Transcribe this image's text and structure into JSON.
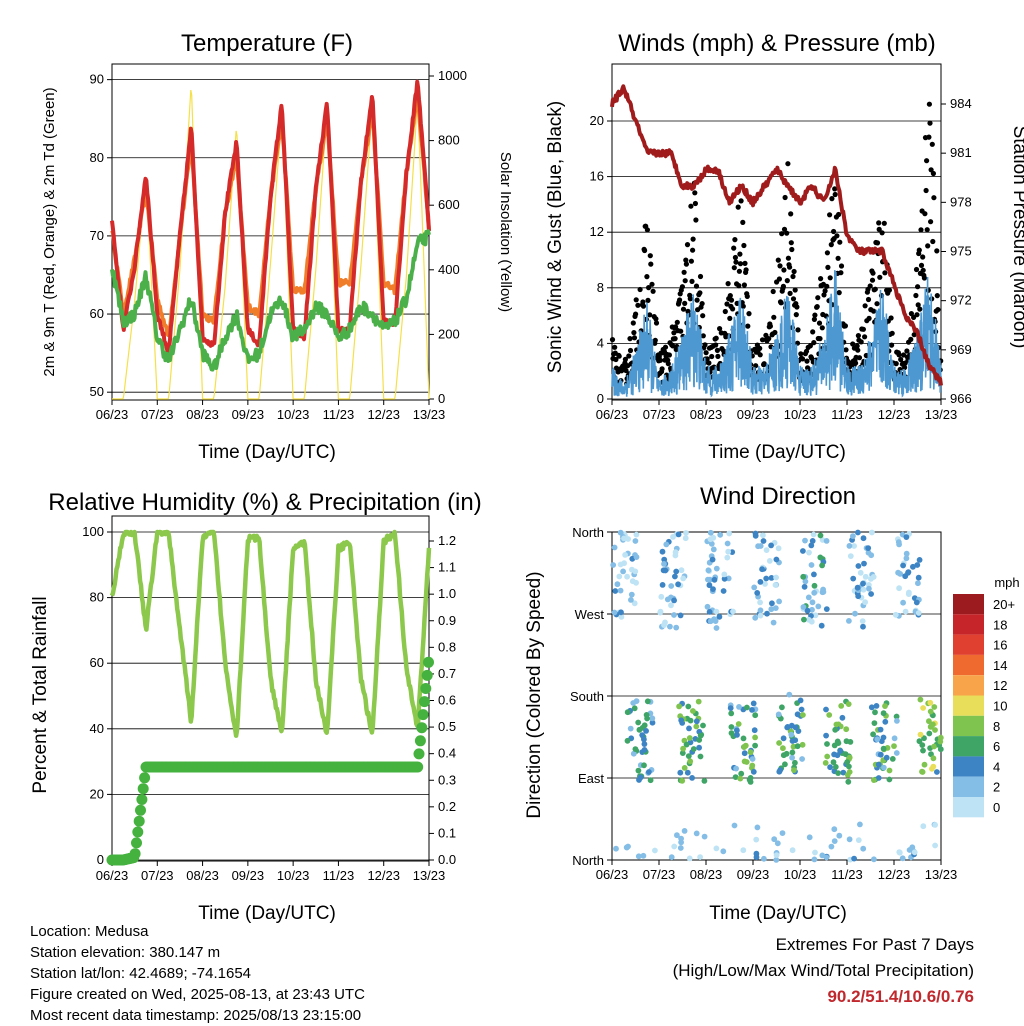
{
  "info": {
    "location": "Location: Medusa",
    "elevation": "Station elevation: 380.147 m",
    "latlon": "Station lat/lon: 42.4689; -74.1654",
    "created": "Figure created on Wed, 2025-08-13, at 23:43 UTC",
    "recent": "Most recent data timestamp: 2025/08/13 23:15:00"
  },
  "extremes": {
    "title": "Extremes For Past 7 Days",
    "subtitle": "(High/Low/Max Wind/Total Precipitation)",
    "values": "90.2/51.4/10.6/0.76"
  },
  "x_ticks": [
    "06/23",
    "07/23",
    "08/23",
    "09/23",
    "10/23",
    "11/23",
    "12/23",
    "13/23"
  ],
  "colors": {
    "temp2m": "#d42a2a",
    "temp9m": "#f07d2a",
    "dewpoint": "#4cb04a",
    "solar": "#f5e04a",
    "wind": "#4d98d0",
    "gust": "#000000",
    "pressure": "#a01c1c",
    "rh": "#8cc84b",
    "precip": "#45b23f"
  },
  "chart_data": [
    {
      "type": "line",
      "title": "Temperature (F)",
      "xlabel": "Time (Day/UTC)",
      "ylabel": "2m & 9m T (Red, Orange) & 2m Td (Green)",
      "y2label": "Solar Insolation (Yellow)",
      "ylim": [
        49,
        92
      ],
      "y2lim": [
        0,
        1000
      ],
      "yticks": [
        50,
        60,
        70,
        80,
        90
      ],
      "y2ticks": [
        0,
        200,
        400,
        600,
        800,
        1000
      ],
      "x": [
        0,
        0.25,
        0.5,
        0.75,
        1,
        1.25,
        1.5,
        1.75,
        2,
        2.25,
        2.5,
        2.75,
        3,
        3.25,
        3.5,
        3.75,
        4,
        4.25,
        4.5,
        4.75,
        5,
        5.25,
        5.5,
        5.75,
        6,
        6.25,
        6.5,
        6.75,
        7
      ],
      "series": [
        {
          "name": "2m T",
          "values": [
            72,
            58,
            66,
            78,
            60,
            55,
            70,
            84,
            57,
            56,
            73,
            82,
            58,
            56,
            75,
            87,
            58,
            57,
            76,
            87,
            58,
            58,
            77,
            88,
            59,
            59,
            78,
            90,
            71
          ]
        },
        {
          "name": "9m T",
          "values": [
            71,
            60,
            67,
            76,
            62,
            57,
            70,
            82,
            60,
            59,
            73,
            80,
            61,
            60,
            75,
            85,
            63,
            63,
            76,
            85,
            64,
            64,
            77,
            86,
            64,
            63,
            78,
            88,
            71
          ]
        },
        {
          "name": "2m Td",
          "values": [
            66,
            59,
            60,
            65,
            57,
            54,
            58,
            62,
            55,
            53,
            57,
            60,
            54,
            55,
            60,
            62,
            57,
            58,
            61,
            60,
            57,
            58,
            61,
            60,
            58,
            59,
            62,
            69,
            70
          ]
        },
        {
          "name": "Solar",
          "values": [
            0,
            0,
            300,
            700,
            0,
            0,
            400,
            980,
            0,
            0,
            350,
            850,
            0,
            0,
            420,
            880,
            0,
            0,
            400,
            900,
            0,
            0,
            420,
            910,
            0,
            0,
            380,
            930,
            0
          ]
        }
      ]
    },
    {
      "type": "line",
      "title": "Winds (mph) & Pressure (mb)",
      "xlabel": "Time (Day/UTC)",
      "ylabel": "Sonic Wind & Gust (Blue, Black)",
      "y2label": "Station Pressure (Maroon)",
      "ylim": [
        0,
        24
      ],
      "y2lim": [
        966,
        986
      ],
      "yticks": [
        0,
        4,
        8,
        12,
        16,
        20
      ],
      "y2ticks": [
        966,
        969,
        972,
        975,
        978,
        981,
        984
      ],
      "x": [
        0,
        0.25,
        0.5,
        0.75,
        1,
        1.25,
        1.5,
        1.75,
        2,
        2.25,
        2.5,
        2.75,
        3,
        3.25,
        3.5,
        3.75,
        4,
        4.25,
        4.5,
        4.75,
        5,
        5.25,
        5.5,
        5.75,
        6,
        6.25,
        6.5,
        6.75,
        7
      ],
      "series": [
        {
          "name": "Wind",
          "values": [
            2,
            1,
            3,
            6,
            1,
            2,
            4,
            7,
            2,
            2,
            4,
            7,
            2,
            2,
            4,
            7,
            2,
            2,
            4,
            8,
            2,
            2,
            4,
            7,
            2,
            2,
            4,
            8,
            2
          ]
        },
        {
          "name": "Gust",
          "values": [
            4,
            2,
            6,
            12,
            3,
            4,
            8,
            14,
            3,
            4,
            8,
            14,
            3,
            4,
            8,
            16,
            3,
            4,
            9,
            15,
            3,
            4,
            8,
            13,
            3,
            3,
            9,
            21,
            3
          ]
        },
        {
          "name": "Pressure",
          "values": [
            984,
            985,
            983,
            981,
            981,
            981,
            979,
            979,
            980,
            980,
            978,
            979,
            978,
            979,
            980,
            979,
            978,
            979,
            978,
            980,
            976,
            975,
            975,
            975,
            973,
            971,
            970,
            968,
            967
          ]
        }
      ]
    },
    {
      "type": "line",
      "title": "Relative Humidity (%) & Precipitation (in)",
      "xlabel": "Time (Day/UTC)",
      "ylabel": "Percent & Total Rainfall",
      "ylim": [
        0,
        100
      ],
      "y2lim": [
        0,
        1.25
      ],
      "yticks": [
        0,
        20,
        40,
        60,
        80,
        100
      ],
      "y2ticks": [
        0.0,
        0.1,
        0.2,
        0.3,
        0.4,
        0.5,
        0.6,
        0.7,
        0.8,
        0.9,
        1.0,
        1.1,
        1.2
      ],
      "x": [
        0,
        0.25,
        0.5,
        0.75,
        1,
        1.25,
        1.5,
        1.75,
        2,
        2.25,
        2.5,
        2.75,
        3,
        3.25,
        3.5,
        3.75,
        4,
        4.25,
        4.5,
        4.75,
        5,
        5.25,
        5.5,
        5.75,
        6,
        6.25,
        6.5,
        6.75,
        7
      ],
      "series": [
        {
          "name": "RH",
          "values": [
            80,
            100,
            100,
            70,
            100,
            100,
            70,
            42,
            98,
            100,
            60,
            37,
            98,
            98,
            55,
            38,
            95,
            97,
            55,
            38,
            95,
            97,
            55,
            38,
            97,
            100,
            58,
            40,
            95
          ]
        },
        {
          "name": "Precip",
          "values": [
            0,
            0,
            0.01,
            0.35,
            0.35,
            0.35,
            0.35,
            0.35,
            0.35,
            0.35,
            0.35,
            0.35,
            0.35,
            0.35,
            0.35,
            0.35,
            0.35,
            0.35,
            0.35,
            0.35,
            0.35,
            0.35,
            0.35,
            0.35,
            0.35,
            0.35,
            0.35,
            0.35,
            0.76
          ]
        }
      ]
    },
    {
      "type": "scatter",
      "title": "Wind Direction",
      "xlabel": "Time (Day/UTC)",
      "ylabel": "Direction (Colored By Speed)",
      "ycategories": [
        "North",
        "East",
        "South",
        "West",
        "North"
      ],
      "colorbar_title": "mph",
      "colorbar_labels": [
        "20+",
        "18",
        "16",
        "14",
        "12",
        "10",
        "8",
        "6",
        "4",
        "2",
        "0"
      ],
      "colorbar_colors": [
        "#9b1b1e",
        "#c6252a",
        "#e04030",
        "#ef6a2f",
        "#f7a44a",
        "#e9de59",
        "#7fc44e",
        "#3ea566",
        "#3d84c4",
        "#84bde6",
        "#bde3f5"
      ],
      "clusters": [
        {
          "x": 0.3,
          "dir": 320,
          "speed": 1
        },
        {
          "x": 0.6,
          "dir": 130,
          "speed": 4
        },
        {
          "x": 1.3,
          "dir": 310,
          "speed": 2
        },
        {
          "x": 1.7,
          "dir": 130,
          "speed": 6
        },
        {
          "x": 2.3,
          "dir": 305,
          "speed": 2
        },
        {
          "x": 2.8,
          "dir": 130,
          "speed": 5
        },
        {
          "x": 3.3,
          "dir": 315,
          "speed": 2
        },
        {
          "x": 3.8,
          "dir": 140,
          "speed": 5
        },
        {
          "x": 4.3,
          "dir": 310,
          "speed": 3
        },
        {
          "x": 4.8,
          "dir": 130,
          "speed": 6
        },
        {
          "x": 5.3,
          "dir": 310,
          "speed": 2
        },
        {
          "x": 5.8,
          "dir": 130,
          "speed": 5
        },
        {
          "x": 6.3,
          "dir": 320,
          "speed": 2
        },
        {
          "x": 6.8,
          "dir": 140,
          "speed": 7
        }
      ]
    }
  ]
}
